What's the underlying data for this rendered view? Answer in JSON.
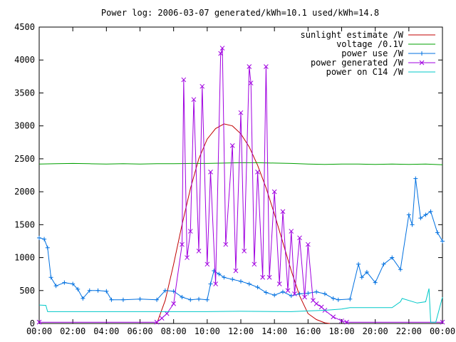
{
  "chart_data": {
    "type": "line",
    "title": "Power log: 2006-03-07 generated/kWh=10.1 used/kWh=14.8",
    "xlabel": "",
    "ylabel": "",
    "xlim": [
      0,
      24
    ],
    "ylim": [
      0,
      4500
    ],
    "x_ticks": [
      {
        "value": 0,
        "label": "00:00"
      },
      {
        "value": 2,
        "label": "02:00"
      },
      {
        "value": 4,
        "label": "04:00"
      },
      {
        "value": 6,
        "label": "06:00"
      },
      {
        "value": 8,
        "label": "08:00"
      },
      {
        "value": 10,
        "label": "10:00"
      },
      {
        "value": 12,
        "label": "12:00"
      },
      {
        "value": 14,
        "label": "14:00"
      },
      {
        "value": 16,
        "label": "16:00"
      },
      {
        "value": 18,
        "label": "18:00"
      },
      {
        "value": 20,
        "label": "20:00"
      },
      {
        "value": 22,
        "label": "22:00"
      },
      {
        "value": 24,
        "label": "00:00"
      }
    ],
    "y_ticks": [
      {
        "value": 0,
        "label": "0"
      },
      {
        "value": 500,
        "label": "500"
      },
      {
        "value": 1000,
        "label": "1000"
      },
      {
        "value": 1500,
        "label": "1500"
      },
      {
        "value": 2000,
        "label": "2000"
      },
      {
        "value": 2500,
        "label": "2500"
      },
      {
        "value": 3000,
        "label": "3000"
      },
      {
        "value": 3500,
        "label": "3500"
      },
      {
        "value": 4000,
        "label": "4000"
      },
      {
        "value": 4500,
        "label": "4500"
      }
    ],
    "grid": false,
    "legend_position": "top-right",
    "series": [
      {
        "name": "sunlight estimate /W",
        "color": "#c00000",
        "marker": "none",
        "x": [
          7.0,
          7.5,
          8.0,
          8.5,
          9.0,
          9.5,
          10.0,
          10.5,
          11.0,
          11.5,
          12.0,
          12.5,
          13.0,
          13.5,
          14.0,
          14.5,
          15.0,
          15.5,
          16.0,
          16.5,
          17.0,
          17.3
        ],
        "values": [
          0,
          350,
          900,
          1500,
          2050,
          2500,
          2800,
          2960,
          3030,
          3000,
          2880,
          2680,
          2400,
          2060,
          1660,
          1230,
          800,
          420,
          150,
          60,
          10,
          0
        ]
      },
      {
        "name": "voltage /0.1V",
        "color": "#00a000",
        "marker": "none",
        "x": [
          0,
          1,
          2,
          3,
          4,
          5,
          6,
          7,
          8,
          9,
          10,
          11,
          12,
          13,
          14,
          15,
          16,
          17,
          18,
          19,
          20,
          21,
          22,
          23,
          24
        ],
        "values": [
          2420,
          2425,
          2430,
          2425,
          2420,
          2425,
          2420,
          2425,
          2425,
          2430,
          2430,
          2435,
          2440,
          2440,
          2435,
          2430,
          2420,
          2415,
          2420,
          2420,
          2415,
          2420,
          2415,
          2420,
          2410
        ]
      },
      {
        "name": "power use /W",
        "color": "#0070e0",
        "marker": "plus",
        "x": [
          0,
          0.3,
          0.5,
          0.7,
          1.0,
          1.5,
          2.0,
          2.3,
          2.6,
          3.0,
          3.5,
          4.0,
          4.3,
          5.0,
          6.0,
          7.0,
          7.5,
          8.0,
          8.5,
          9.0,
          9.5,
          10.0,
          10.2,
          10.4,
          10.7,
          11.0,
          11.5,
          12.0,
          12.5,
          13.0,
          13.5,
          14.0,
          14.5,
          15.0,
          15.5,
          16.0,
          16.5,
          17.0,
          17.5,
          17.8,
          18.5,
          19.0,
          19.2,
          19.5,
          20.0,
          20.5,
          21.0,
          21.5,
          22.0,
          22.2,
          22.4,
          22.7,
          23.0,
          23.3,
          23.7,
          24.0
        ],
        "values": [
          1300,
          1280,
          1150,
          700,
          570,
          620,
          600,
          520,
          380,
          500,
          500,
          490,
          360,
          360,
          370,
          360,
          500,
          490,
          400,
          360,
          370,
          360,
          600,
          800,
          750,
          700,
          670,
          640,
          600,
          550,
          470,
          430,
          480,
          420,
          450,
          460,
          480,
          450,
          380,
          360,
          370,
          900,
          700,
          780,
          620,
          900,
          1000,
          820,
          1650,
          1500,
          2200,
          1600,
          1650,
          1700,
          1380,
          1250
        ]
      },
      {
        "name": "power generated /W",
        "color": "#a000e0",
        "marker": "cross",
        "x": [
          0,
          7.0,
          7.3,
          7.6,
          8.0,
          8.5,
          8.6,
          8.8,
          9.0,
          9.2,
          9.5,
          9.7,
          10.0,
          10.2,
          10.5,
          10.8,
          10.9,
          11.1,
          11.5,
          11.7,
          12.0,
          12.2,
          12.5,
          12.6,
          12.8,
          13.0,
          13.3,
          13.5,
          13.7,
          14.0,
          14.3,
          14.5,
          14.8,
          15.0,
          15.2,
          15.5,
          15.8,
          16.0,
          16.3,
          16.5,
          16.8,
          17.0,
          17.5,
          18.0,
          18.3,
          24.0
        ],
        "values": [
          20,
          20,
          80,
          150,
          300,
          1200,
          3700,
          1000,
          1400,
          3400,
          1100,
          3600,
          900,
          2300,
          600,
          4100,
          4180,
          1200,
          2700,
          800,
          3200,
          1100,
          3900,
          3650,
          900,
          2300,
          700,
          3900,
          700,
          2000,
          600,
          1700,
          500,
          1400,
          450,
          1300,
          400,
          1200,
          350,
          300,
          250,
          200,
          100,
          40,
          20,
          20
        ]
      },
      {
        "name": "power on C14 /W",
        "color": "#00c8c8",
        "marker": "none",
        "x": [
          0,
          0.4,
          0.5,
          5.0,
          6.0,
          7.0,
          7.5,
          10.0,
          12.0,
          15.0,
          16.0,
          17.0,
          18.0,
          18.5,
          19.0,
          20.0,
          21.0,
          21.5,
          21.6,
          22.5,
          23.0,
          23.2,
          23.3,
          23.6,
          24.0
        ],
        "values": [
          280,
          275,
          180,
          180,
          180,
          180,
          180,
          180,
          185,
          180,
          190,
          200,
          220,
          240,
          240,
          240,
          240,
          330,
          380,
          310,
          330,
          530,
          20,
          20,
          400
        ]
      }
    ]
  }
}
